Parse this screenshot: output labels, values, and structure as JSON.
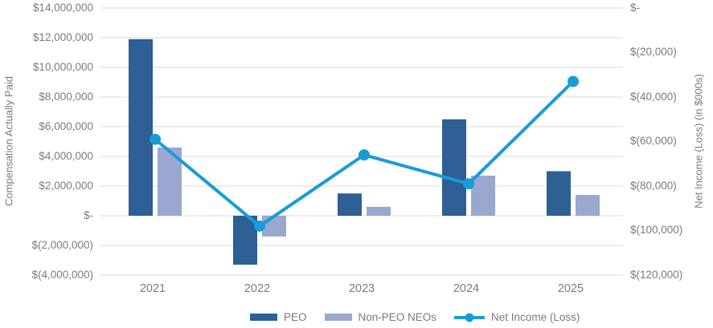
{
  "chart": {
    "left_axis": {
      "title": "Compensation Actually Paid",
      "ticks": [
        "$14,000,000",
        "$12,000,000",
        "$10,000,000",
        "$8,000,000",
        "$6,000,000",
        "$4,000,000",
        "$2,000,000",
        "$-",
        "$(2,000,000)",
        "$(4,000,000)"
      ]
    },
    "right_axis": {
      "title": "Net Income (Loss) (in $000s)",
      "ticks": [
        "$-",
        "$(20,000)",
        "$(40,000)",
        "$(60,000)",
        "$(80,000)",
        "$(100,000)",
        "$(120,000)"
      ]
    },
    "legend": [
      {
        "label": "PEO",
        "type": "bar"
      },
      {
        "label": "Non-PEO NEOs",
        "type": "bar"
      },
      {
        "label": "Net Income (Loss)",
        "type": "line"
      }
    ],
    "colors": {
      "peo_bar": "#2E5F95",
      "non_peo_bar": "#9AA7CE",
      "net_income_line": "#189CD8",
      "gridline": "#D9D9D9",
      "text": "#7B7B7B"
    }
  },
  "chart_data": {
    "type": "combo",
    "categories": [
      "2021",
      "2022",
      "2023",
      "2024",
      "2025"
    ],
    "series": [
      {
        "name": "PEO",
        "type": "bar",
        "axis": "left",
        "color": "#2E5F95",
        "values": [
          11900000,
          -3300000,
          1500000,
          6500000,
          3000000
        ]
      },
      {
        "name": "Non-PEO NEOs",
        "type": "bar",
        "axis": "left",
        "color": "#9AA7CE",
        "values": [
          4600000,
          -1400000,
          600000,
          2700000,
          1400000
        ]
      },
      {
        "name": "Net Income (Loss)",
        "type": "line",
        "axis": "right",
        "color": "#189CD8",
        "values": [
          -59000,
          -98000,
          -66000,
          -79000,
          -33000
        ]
      }
    ],
    "left_axis": {
      "label": "Compensation Actually Paid",
      "range": [
        -4000000,
        14000000
      ],
      "tick_step": 2000000
    },
    "right_axis": {
      "label": "Net Income (Loss) (in $000s)",
      "range": [
        -120000,
        0
      ],
      "tick_step": 20000
    },
    "grid": true,
    "legend_position": "bottom"
  }
}
